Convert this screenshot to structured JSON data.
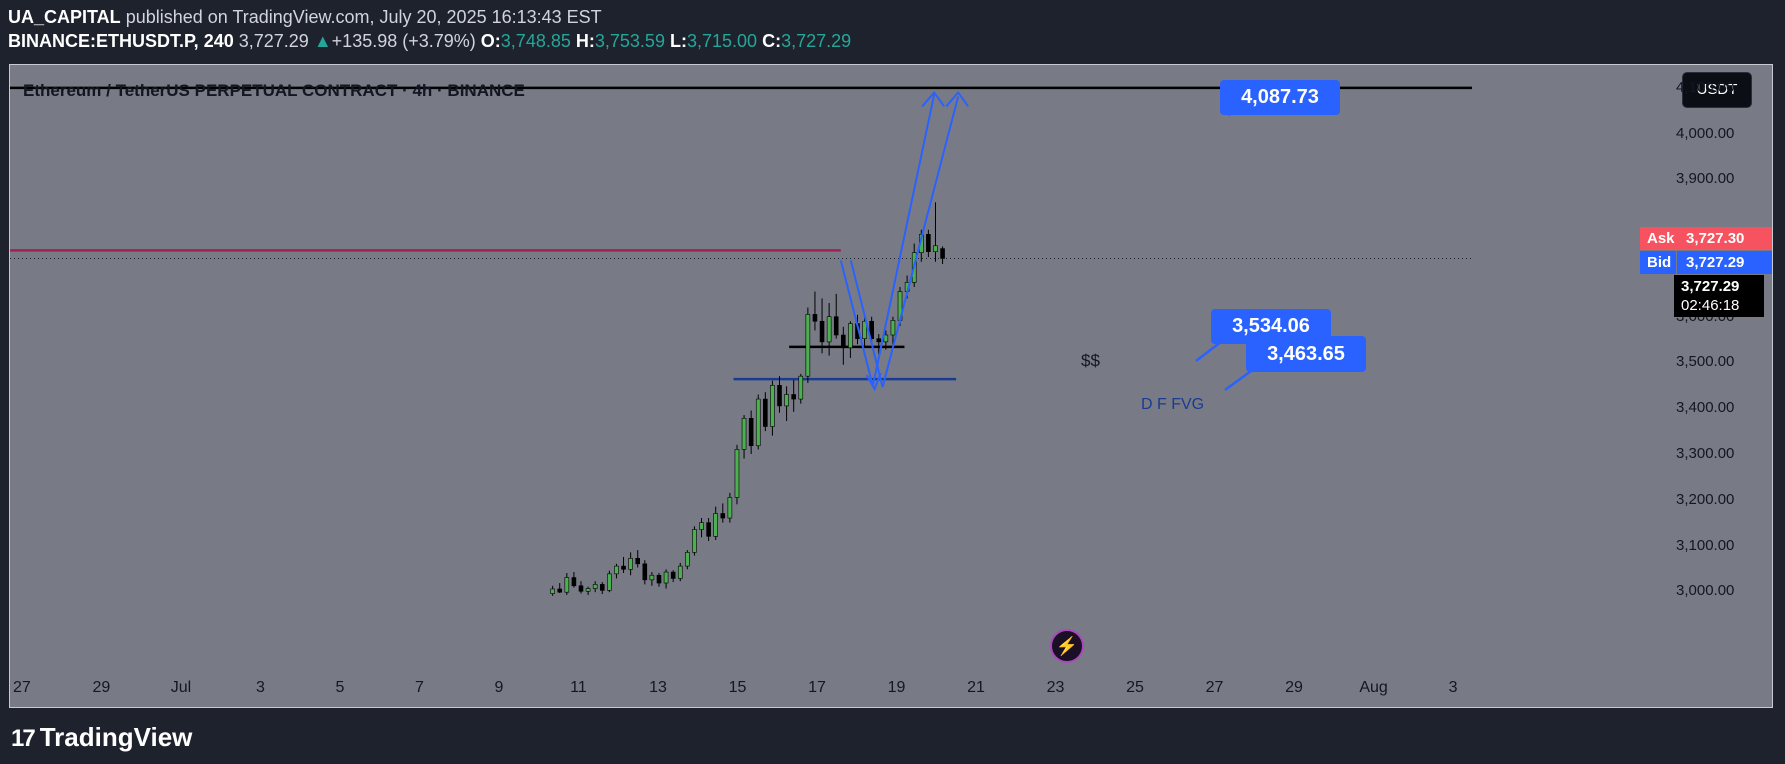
{
  "header": {
    "author": "UA_CAPITAL",
    "published": "published on TradingView.com, July 20, 2025 16:13:43 EST",
    "symbol": "BINANCE:ETHUSDT.P, 240",
    "last": "3,727.29",
    "change": "+135.98 (+3.79%)",
    "o_label": "O:",
    "o_value": "3,748.85",
    "h_label": "H:",
    "h_value": "3,753.59",
    "l_label": "L:",
    "l_value": "3,715.00",
    "c_label": "C:",
    "c_value": "3,727.29"
  },
  "chart_title": "Ethereum / TetherUS PERPETUAL CONTRACT · 4h · BINANCE",
  "currency_button": "USDT",
  "price_tags": {
    "ask_label": "Ask",
    "ask_value": "3,727.30",
    "bid_label": "Bid",
    "bid_value": "3,727.29",
    "last_value": "3,727.29",
    "countdown": "02:46:18"
  },
  "callouts": {
    "target": "4,087.73",
    "level1": "3,534.06",
    "level2": "3,463.65"
  },
  "annotations": {
    "liquidity": "$$",
    "fvg": "D F FVG"
  },
  "footer": {
    "brand": "TradingView",
    "logo_mark": "17"
  },
  "colors": {
    "bg": "#1e222d",
    "plot": "#787b86",
    "up": "#26a69a",
    "candle_up": "#4caf50",
    "callout": "#2962ff",
    "ask": "#f7525f",
    "bid": "#2962ff",
    "resistance": "#a12050"
  },
  "icons": {
    "flash": "lightning-icon"
  },
  "chart_data": {
    "type": "candlestick",
    "ylim": [
      2970,
      4150
    ],
    "yticks": [
      {
        "value": 4100,
        "label": "4,100.00"
      },
      {
        "value": 4000,
        "label": "4,000.00"
      },
      {
        "value": 3900,
        "label": "3,900.00"
      },
      {
        "value": 3600,
        "label": "3,600.00"
      },
      {
        "value": 3500,
        "label": "3,500.00"
      },
      {
        "value": 3400,
        "label": "3,400.00"
      },
      {
        "value": 3300,
        "label": "3,300.00"
      },
      {
        "value": 3200,
        "label": "3,200.00"
      },
      {
        "value": 3100,
        "label": "3,100.00"
      },
      {
        "value": 3000,
        "label": "3,000.00"
      }
    ],
    "xlim_days": [
      -0.3,
      36.3
    ],
    "xticks": [
      {
        "day": 0,
        "label": "27"
      },
      {
        "day": 2,
        "label": "29"
      },
      {
        "day": 4,
        "label": "Jul"
      },
      {
        "day": 6,
        "label": "3"
      },
      {
        "day": 8,
        "label": "5"
      },
      {
        "day": 10,
        "label": "7"
      },
      {
        "day": 12,
        "label": "9"
      },
      {
        "day": 14,
        "label": "11"
      },
      {
        "day": 16,
        "label": "13"
      },
      {
        "day": 18,
        "label": "15"
      },
      {
        "day": 20,
        "label": "17"
      },
      {
        "day": 22,
        "label": "19"
      },
      {
        "day": 24,
        "label": "21"
      },
      {
        "day": 26,
        "label": "23"
      },
      {
        "day": 28,
        "label": "25"
      },
      {
        "day": 30,
        "label": "27"
      },
      {
        "day": 32,
        "label": "29"
      },
      {
        "day": 34,
        "label": "Aug"
      },
      {
        "day": 36,
        "label": "3"
      }
    ],
    "candles_ohlc": [
      [
        2995,
        3012,
        2990,
        3005
      ],
      [
        3005,
        3018,
        2996,
        2998
      ],
      [
        2998,
        3040,
        2992,
        3030
      ],
      [
        3030,
        3042,
        3008,
        3012
      ],
      [
        3012,
        3022,
        2995,
        3000
      ],
      [
        3000,
        3010,
        2992,
        3006
      ],
      [
        3006,
        3022,
        2998,
        3015
      ],
      [
        3015,
        3020,
        2994,
        3002
      ],
      [
        3002,
        3045,
        2998,
        3038
      ],
      [
        3038,
        3060,
        3028,
        3055
      ],
      [
        3055,
        3075,
        3040,
        3048
      ],
      [
        3048,
        3085,
        3035,
        3072
      ],
      [
        3072,
        3090,
        3052,
        3060
      ],
      [
        3060,
        3068,
        3015,
        3025
      ],
      [
        3025,
        3042,
        3012,
        3035
      ],
      [
        3035,
        3040,
        3010,
        3018
      ],
      [
        3018,
        3048,
        3006,
        3042
      ],
      [
        3042,
        3046,
        3020,
        3028
      ],
      [
        3028,
        3062,
        3022,
        3055
      ],
      [
        3055,
        3090,
        3048,
        3085
      ],
      [
        3085,
        3142,
        3078,
        3135
      ],
      [
        3135,
        3160,
        3118,
        3150
      ],
      [
        3150,
        3160,
        3110,
        3120
      ],
      [
        3120,
        3185,
        3112,
        3170
      ],
      [
        3170,
        3192,
        3150,
        3160
      ],
      [
        3160,
        3215,
        3150,
        3205
      ],
      [
        3205,
        3320,
        3190,
        3310
      ],
      [
        3310,
        3385,
        3290,
        3378
      ],
      [
        3378,
        3395,
        3300,
        3318
      ],
      [
        3318,
        3430,
        3310,
        3420
      ],
      [
        3420,
        3435,
        3350,
        3360
      ],
      [
        3360,
        3460,
        3340,
        3450
      ],
      [
        3450,
        3470,
        3390,
        3405
      ],
      [
        3405,
        3448,
        3372,
        3430
      ],
      [
        3430,
        3462,
        3392,
        3420
      ],
      [
        3420,
        3475,
        3410,
        3470
      ],
      [
        3470,
        3620,
        3455,
        3605
      ],
      [
        3605,
        3655,
        3570,
        3590
      ],
      [
        3590,
        3640,
        3520,
        3545
      ],
      [
        3545,
        3630,
        3515,
        3600
      ],
      [
        3600,
        3650,
        3552,
        3560
      ],
      [
        3560,
        3578,
        3495,
        3532
      ],
      [
        3532,
        3590,
        3510,
        3585
      ],
      [
        3585,
        3604,
        3540,
        3552
      ],
      [
        3552,
        3598,
        3532,
        3590
      ],
      [
        3590,
        3600,
        3542,
        3552
      ],
      [
        3552,
        3562,
        3518,
        3545
      ],
      [
        3545,
        3570,
        3528,
        3560
      ],
      [
        3560,
        3600,
        3538,
        3592
      ],
      [
        3592,
        3665,
        3580,
        3655
      ],
      [
        3655,
        3690,
        3640,
        3675
      ],
      [
        3675,
        3760,
        3665,
        3740
      ],
      [
        3740,
        3790,
        3720,
        3780
      ],
      [
        3780,
        3790,
        3730,
        3742
      ],
      [
        3742,
        3850,
        3720,
        3755
      ],
      [
        3748.85,
        3753.59,
        3715.0,
        3727.29
      ]
    ],
    "levels": {
      "resistance": 4100,
      "previous_high": 3745,
      "last_price": 3727.29,
      "liquidity": 3534.06,
      "fvg": 3463.65,
      "target": 4087.73
    }
  }
}
